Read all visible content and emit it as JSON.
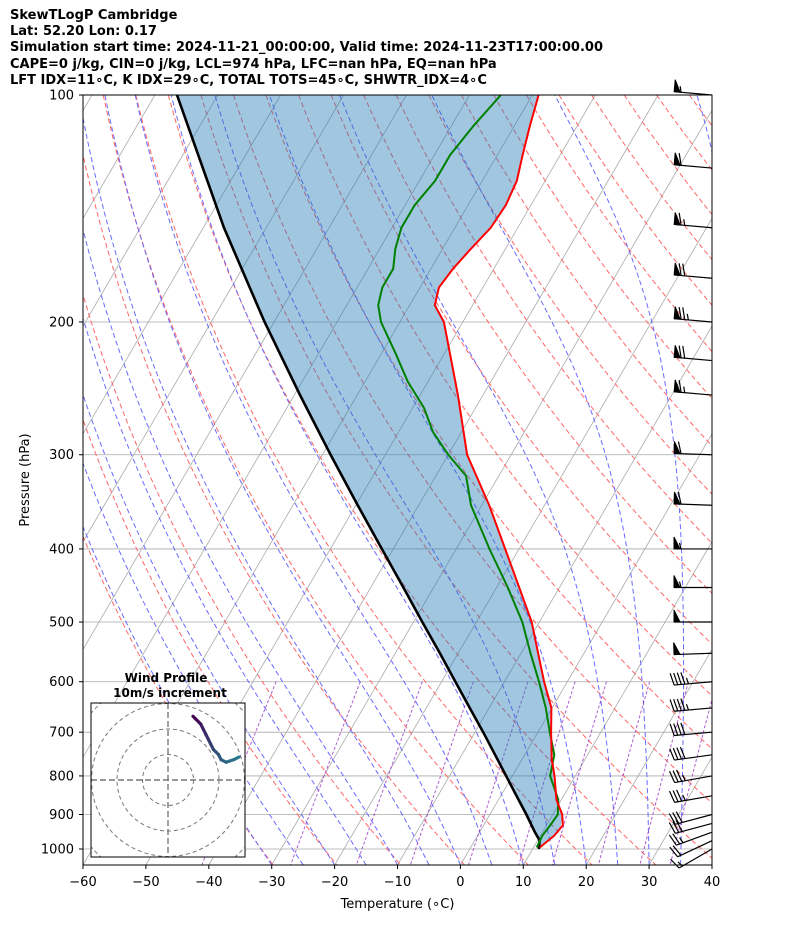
{
  "title": {
    "line1": "SkewTLogP Cambridge",
    "line2": "Lat: 52.20   Lon: 0.17",
    "line3": "Simulation start time: 2024-11-21_00:00:00, Valid time: 2024-11-23T17:00:00.00",
    "line4": "CAPE=0 j/kg, CIN=0 j/kg, LCL=974 hPa, LFC=nan hPa, EQ=nan hPa",
    "line5": "LFT IDX=11∘C, K IDX=29∘C, TOTAL TOTS=45∘C, SHWTR_IDX=4∘C"
  },
  "chart_data": [
    {
      "type": "line",
      "subtype": "skew-t log-p",
      "xlabel": "Temperature (∘C)",
      "ylabel": "Pressure (hPa)",
      "xlim": [
        -60,
        40
      ],
      "ylim_pressure": [
        1050,
        100
      ],
      "y_scale": "log",
      "x_ticks": [
        -60,
        -50,
        -40,
        -30,
        -20,
        -10,
        0,
        10,
        20,
        30,
        40
      ],
      "x_tick_labels": [
        "−60",
        "−50",
        "−40",
        "−30",
        "−20",
        "−10",
        "0",
        "10",
        "20",
        "30",
        "40"
      ],
      "y_ticks": [
        1000,
        900,
        800,
        700,
        600,
        500,
        400,
        300,
        200,
        100
      ],
      "y_tick_labels": [
        "1000",
        "900",
        "800",
        "700",
        "600",
        "500",
        "400",
        "300",
        "200",
        "100"
      ],
      "grid": true,
      "colors": {
        "temperature": "#ff0000",
        "dewpoint": "#008000",
        "parcel": "#000000",
        "cin_shading": "#1f77b4",
        "dry_adiabat": "#ff6666",
        "moist_adiabat": "#6a6aff",
        "mixing_ratio": "#9a34c6",
        "isotherm": "#aaaaaa"
      },
      "temperature_profile": {
        "p": [
          995,
          960,
          930,
          900,
          860,
          800,
          760,
          700,
          650,
          600,
          550,
          500,
          450,
          400,
          350,
          300,
          250,
          200,
          190,
          180,
          170,
          160,
          150,
          140,
          130,
          120,
          110,
          100
        ],
        "t": [
          11,
          12.2,
          12.6,
          11.5,
          9.2,
          6.7,
          4.7,
          2.1,
          -0.1,
          -3.7,
          -7.3,
          -11.2,
          -16.4,
          -22.2,
          -28.8,
          -37,
          -44,
          -53,
          -56,
          -57,
          -56.5,
          -55.5,
          -54.3,
          -54,
          -54.5,
          -56,
          -57.5,
          -59
        ]
      },
      "dewpoint_profile": {
        "p": [
          995,
          960,
          930,
          900,
          860,
          800,
          750,
          700,
          650,
          600,
          550,
          500,
          450,
          400,
          350,
          320,
          300,
          280,
          260,
          240,
          220,
          200,
          190,
          180,
          170,
          160,
          150,
          140,
          130,
          120,
          110,
          100
        ],
        "td": [
          10.5,
          10.3,
          10.6,
          10.8,
          9.5,
          6,
          4.7,
          1.9,
          -1,
          -4.5,
          -8.5,
          -12.7,
          -18.2,
          -24.7,
          -31.7,
          -35.2,
          -40,
          -44.5,
          -48.2,
          -53.2,
          -57.8,
          -63,
          -65,
          -66,
          -66,
          -67.5,
          -68.5,
          -68.5,
          -67.5,
          -67.5,
          -66.5,
          -65
        ]
      },
      "parcel_profile": {
        "p": [
          1000,
          974,
          950,
          900,
          850,
          800,
          750,
          700,
          650,
          600,
          550,
          500,
          450,
          400,
          350,
          300,
          250,
          200,
          150,
          100
        ],
        "t": [
          11,
          10.3,
          8.8,
          5.8,
          2.5,
          -1,
          -4.7,
          -8.7,
          -13.1,
          -17.8,
          -22.9,
          -28.6,
          -34.8,
          -41.8,
          -49.7,
          -58.7,
          -69.1,
          -81.5,
          -96.7,
          -116.5
        ]
      },
      "wind_barbs": {
        "p": [
          1000,
          975,
          950,
          925,
          900,
          850,
          800,
          750,
          700,
          650,
          600,
          550,
          500,
          450,
          400,
          350,
          300,
          250,
          225,
          200,
          175,
          150,
          125,
          100
        ],
        "speed_kt": [
          15,
          20,
          25,
          30,
          30,
          35,
          35,
          40,
          40,
          45,
          45,
          50,
          50,
          55,
          55,
          60,
          60,
          65,
          70,
          75,
          70,
          65,
          60,
          55
        ],
        "direction_deg": [
          240,
          245,
          250,
          255,
          255,
          260,
          260,
          262,
          265,
          265,
          265,
          268,
          270,
          270,
          270,
          272,
          272,
          275,
          275,
          275,
          275,
          275,
          275,
          275
        ]
      }
    },
    {
      "type": "line",
      "subtype": "hodograph",
      "title": "Wind Profile",
      "subtitle": "10m/s increment",
      "ring_step": 10,
      "u": [
        2,
        4,
        7,
        9,
        10,
        12,
        13,
        14,
        15,
        16,
        17,
        18,
        19,
        20
      ],
      "v": [
        -2,
        -3,
        -4,
        -3,
        -1,
        1,
        3,
        5,
        7,
        9,
        11,
        12,
        13,
        14
      ],
      "color_start": "#2a788e",
      "color_end": "#440154"
    }
  ]
}
